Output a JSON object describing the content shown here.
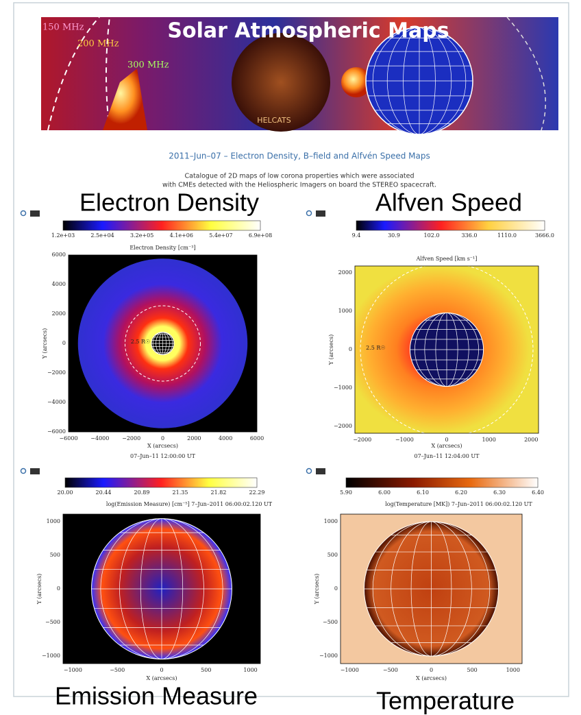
{
  "banner": {
    "title": "Solar Atmospheric Maps",
    "freq_labels": [
      "150 MHz",
      "200 MHz",
      "300 MHz"
    ],
    "logo": "HELCATS"
  },
  "heading": "2011–Jun–07 – Electron Density, B–field and Alfvén Speed Maps",
  "description": [
    "Catalogue of 2D maps of low corona properties which were associated",
    "with CMEs detected with the Heliospheric Imagers on board the STEREO spacecraft."
  ],
  "panels": [
    {
      "caption": "Electron Density",
      "colorbar_ticks": [
        "1.2e+03",
        "2.5e+04",
        "3.2e+05",
        "4.1e+06",
        "5.4e+07",
        "6.9e+08"
      ],
      "title": "Electron Density [cm⁻³]",
      "marker": "2.5 R☉",
      "y_ticks": [
        "6000",
        "4000",
        "2000",
        "0",
        "−2000",
        "−4000",
        "−6000"
      ],
      "x_ticks": [
        "−6000",
        "−4000",
        "−2000",
        "0",
        "2000",
        "4000",
        "6000"
      ],
      "y_label": "Y (arcsecs)",
      "x_label": "X (arcsecs)",
      "timestamp": "07–Jun–11 12:00:00 UT"
    },
    {
      "caption": "Alfven Speed",
      "colorbar_ticks": [
        "9.4",
        "30.9",
        "102.0",
        "336.0",
        "1110.0",
        "3666.0"
      ],
      "title": "Alfven Speed [km s⁻¹]",
      "marker": "2.5 R☉",
      "y_ticks": [
        "2000",
        "1000",
        "0",
        "−1000",
        "−2000"
      ],
      "x_ticks": [
        "−2000",
        "−1000",
        "0",
        "1000",
        "2000"
      ],
      "y_label": "Y (arcsecs)",
      "x_label": "X (arcsecs)",
      "timestamp": "07–Jun–11 12:04:00 UT"
    },
    {
      "caption": "Emission Measure",
      "colorbar_ticks": [
        "20.00",
        "20.44",
        "20.89",
        "21.35",
        "21.82",
        "22.29"
      ],
      "title": "log(Emission Measure) [cm⁻⁵]  7–Jun–2011 06:00:02.120 UT",
      "y_ticks": [
        "1000",
        "500",
        "0",
        "−500",
        "−1000"
      ],
      "x_ticks": [
        "−1000",
        "−500",
        "0",
        "500",
        "1000"
      ],
      "y_label": "Y (arcsecs)",
      "x_label": "X (arcsecs)"
    },
    {
      "caption": "Temperature",
      "colorbar_ticks": [
        "5.90",
        "6.00",
        "6.10",
        "6.20",
        "6.30",
        "6.40"
      ],
      "title": "log(Temperature [MK])  7–Jun–2011 06:00:02.120 UT",
      "y_ticks": [
        "1000",
        "500",
        "0",
        "−500",
        "−1000"
      ],
      "x_ticks": [
        "−1000",
        "−500",
        "0",
        "500",
        "1000"
      ],
      "y_label": "Y (arcsecs)",
      "x_label": "X (arcsecs)"
    }
  ]
}
